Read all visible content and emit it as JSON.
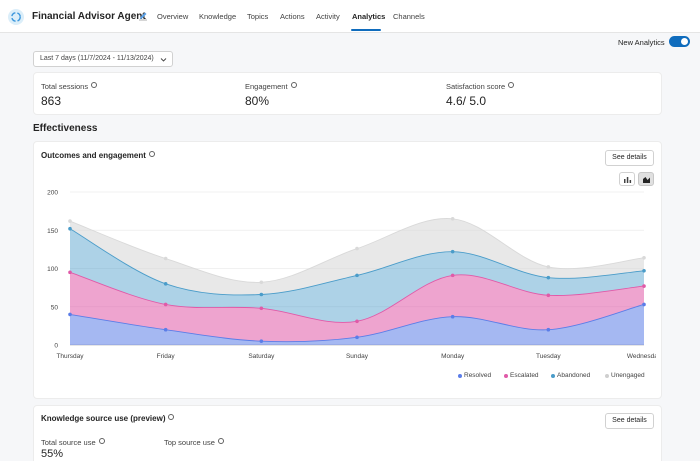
{
  "header": {
    "title": "Financial Advisor Agent",
    "tabs": [
      "Overview",
      "Knowledge",
      "Topics",
      "Actions",
      "Activity",
      "Analytics",
      "Channels"
    ],
    "active_tab": "Analytics"
  },
  "toggle": {
    "label": "New Analytics",
    "on": true
  },
  "date_filter": {
    "value": "Last 7 days (11/7/2024 - 11/13/2024)"
  },
  "metrics": [
    {
      "label": "Total sessions",
      "value": "863"
    },
    {
      "label": "Engagement",
      "value": "80%"
    },
    {
      "label": "Satisfaction score",
      "value": "4.6/ 5.0"
    }
  ],
  "section_title": "Effectiveness",
  "outcomes_card": {
    "title": "Outcomes and engagement",
    "details_label": "See details"
  },
  "knowledge_card": {
    "title": "Knowledge source use (preview)",
    "details_label": "See details",
    "total_label": "Total source use",
    "total_value": "55%",
    "top_label": "Top source use"
  },
  "colors": {
    "accent": "#0f6cbd",
    "resolved": "#5b7de8",
    "escalated": "#e05aa8",
    "abandoned": "#4a9cc9",
    "unengaged": "#d9d9d9"
  },
  "chart_data": {
    "type": "area",
    "stacked": true,
    "categories": [
      "Thursday",
      "Friday",
      "Saturday",
      "Sunday",
      "Monday",
      "Tuesday",
      "Wednesday"
    ],
    "ylim": [
      0,
      200
    ],
    "yticks": [
      0,
      50,
      100,
      150,
      200
    ],
    "grid": true,
    "legend_position": "bottom-right",
    "series": [
      {
        "name": "Resolved",
        "values": [
          40,
          20,
          5,
          10,
          37,
          20,
          53
        ]
      },
      {
        "name": "Escalated",
        "values": [
          55,
          33,
          43,
          21,
          54,
          45,
          24
        ]
      },
      {
        "name": "Abandoned",
        "values": [
          57,
          27,
          18,
          60,
          31,
          23,
          20
        ]
      },
      {
        "name": "Unengaged",
        "values": [
          10,
          33,
          16,
          35,
          43,
          14,
          17
        ]
      }
    ]
  }
}
